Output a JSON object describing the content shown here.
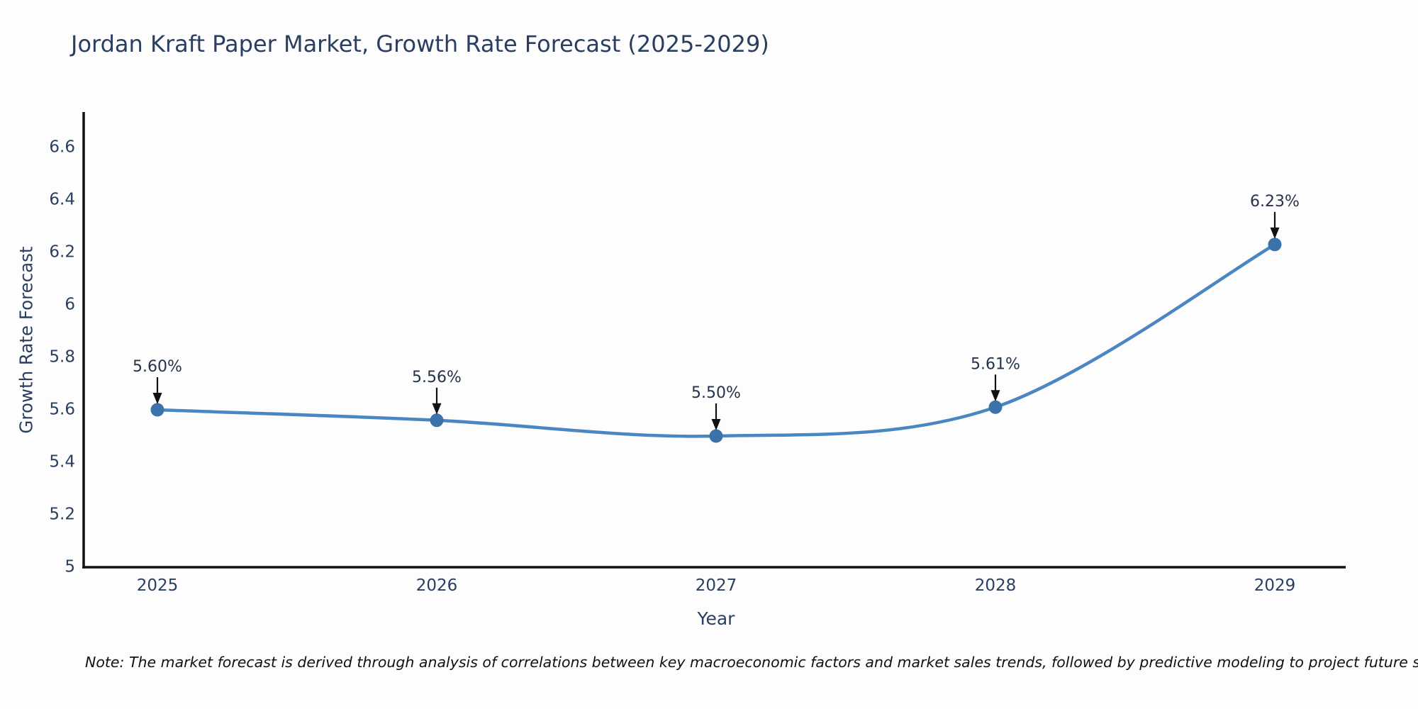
{
  "title": "Jordan Kraft Paper Market, Growth Rate Forecast (2025-2029)",
  "note": "Note: The market forecast is derived through analysis of correlations between key macroeconomic factors and market sales trends, followed by predictive modeling to project future sales",
  "chart_data": {
    "type": "line",
    "title": "Jordan Kraft Paper Market, Growth Rate Forecast (2025-2029)",
    "x": [
      2025,
      2026,
      2027,
      2028,
      2029
    ],
    "series": [
      {
        "name": "Growth Rate Forecast",
        "values": [
          5.6,
          5.56,
          5.5,
          5.61,
          6.23
        ]
      }
    ],
    "point_labels": [
      "5.60%",
      "5.56%",
      "5.50%",
      "5.61%",
      "6.23%"
    ],
    "xlabel": "Year",
    "ylabel": "Growth Rate Forecast",
    "ylim": [
      5,
      6.6
    ],
    "yticks": [
      5,
      5.2,
      5.4,
      5.6,
      5.8,
      6,
      6.2,
      6.4,
      6.6
    ],
    "ytick_labels": [
      "5",
      "5.2",
      "5.4",
      "5.6",
      "5.8",
      "6",
      "6.2",
      "6.4",
      "6.6"
    ],
    "grid": false,
    "legend_position": "none",
    "line_shape": "spline",
    "annotation_style": "value label with down arrow above each point",
    "colors": {
      "line": "#4a86c1",
      "marker": "#3a72a9",
      "axis": "#111111",
      "chart_text": "#2a3f5f",
      "annotation_text": "#253349",
      "note_text": "#111111",
      "background": "#fdfdfe"
    }
  }
}
